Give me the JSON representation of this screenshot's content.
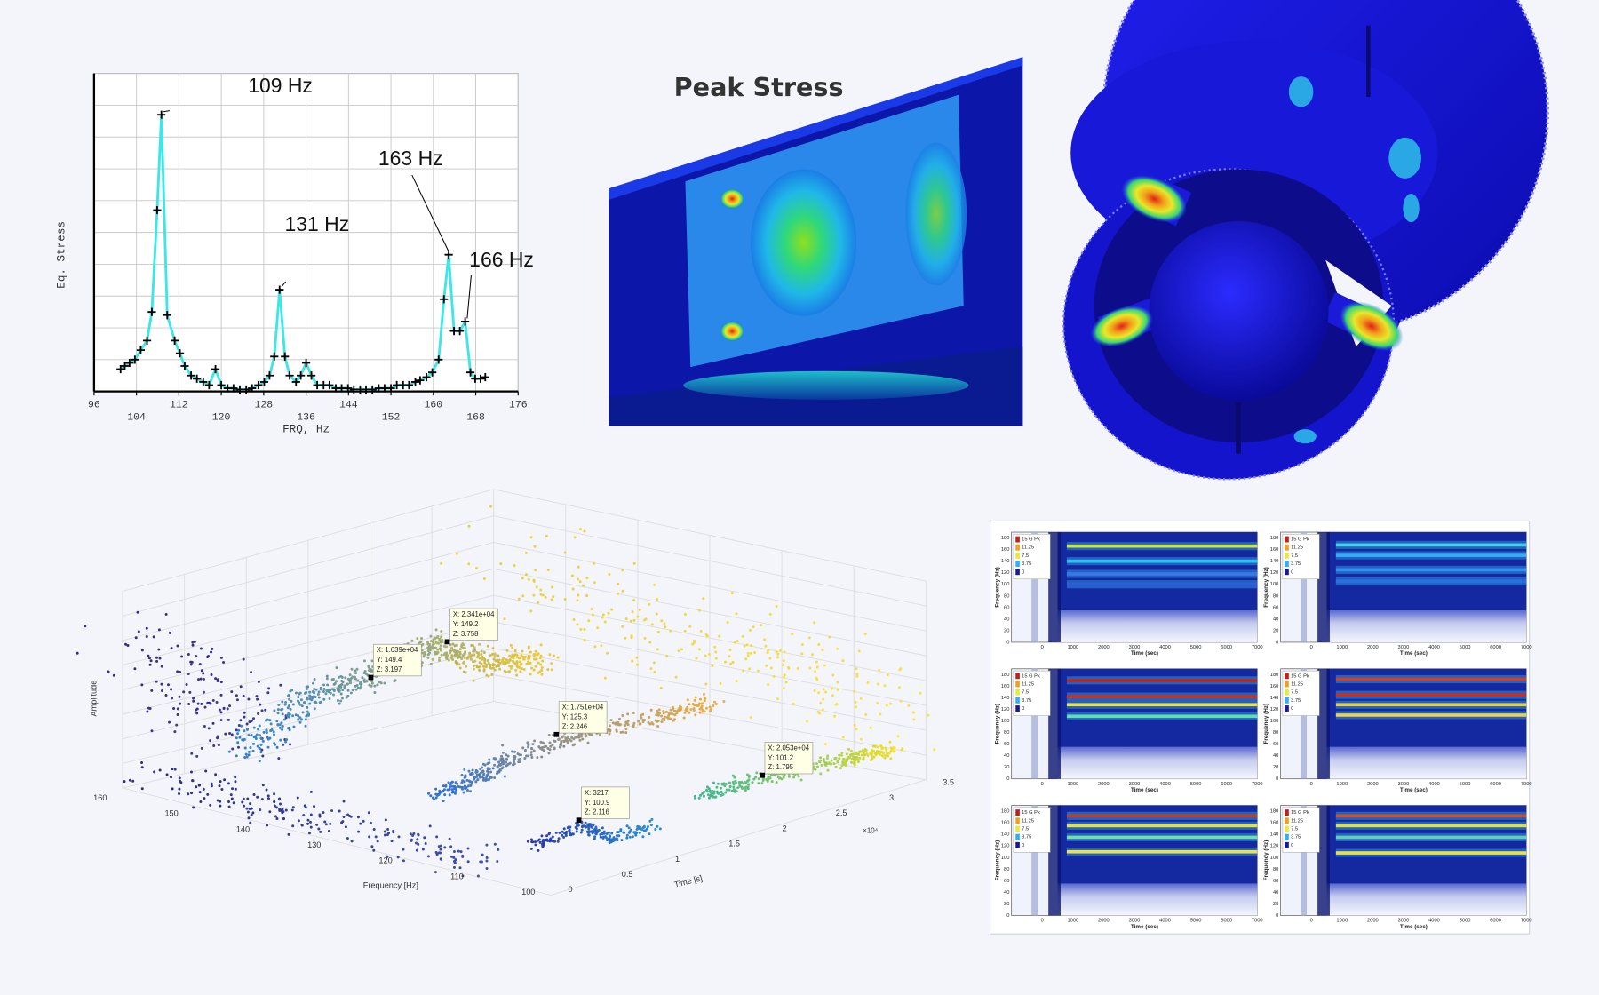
{
  "chart_data": {
    "type": "line",
    "x": [
      101.0,
      101.8,
      102.7,
      103.7,
      104.8,
      106.0,
      106.9,
      107.9,
      108.7,
      109.8,
      111.2,
      112.2,
      113.1,
      114.3,
      115.4,
      116.6,
      117.7,
      118.9,
      120.0,
      121.2,
      122.3,
      123.5,
      124.7,
      125.8,
      127.0,
      128.1,
      129.1,
      130.0,
      131.0,
      132.0,
      132.9,
      134.1,
      135.0,
      136.0,
      137.0,
      138.1,
      139.3,
      140.4,
      141.6,
      142.7,
      143.9,
      145.0,
      146.2,
      147.3,
      148.5,
      149.7,
      150.8,
      152.0,
      153.1,
      154.3,
      155.4,
      156.6,
      157.5,
      158.7,
      159.8,
      161.0,
      162.0,
      162.9,
      163.9,
      165.0,
      166.0,
      167.0,
      167.9,
      168.9,
      169.8
    ],
    "values": [
      0.7,
      0.8,
      0.9,
      1.0,
      1.3,
      1.6,
      2.5,
      5.7,
      8.7,
      2.4,
      1.6,
      1.2,
      0.8,
      0.5,
      0.4,
      0.3,
      0.2,
      0.7,
      0.2,
      0.1,
      0.1,
      0.06,
      0.06,
      0.1,
      0.2,
      0.3,
      0.5,
      1.1,
      3.2,
      1.1,
      0.5,
      0.3,
      0.5,
      0.9,
      0.5,
      0.2,
      0.2,
      0.2,
      0.1,
      0.1,
      0.1,
      0.06,
      0.06,
      0.06,
      0.06,
      0.1,
      0.1,
      0.1,
      0.2,
      0.2,
      0.2,
      0.3,
      0.35,
      0.45,
      0.6,
      1.0,
      2.9,
      4.3,
      1.9,
      1.9,
      2.2,
      0.6,
      0.4,
      0.4,
      0.45
    ],
    "color": "#3ee6e6",
    "marker_color": "#000000",
    "xlim": [
      96,
      176
    ],
    "xticks": [
      96,
      104,
      112,
      120,
      128,
      136,
      144,
      152,
      160,
      168,
      176
    ],
    "ylim": [
      0,
      10
    ],
    "grid": true,
    "x_label": "FRQ, Hz",
    "y_label": "Eq. Stress",
    "annotations": [
      {
        "text": "109 Hz",
        "x": 108.7,
        "y": 8.7
      },
      {
        "text": "131 Hz",
        "x": 131.0,
        "y": 3.2
      },
      {
        "text": "163 Hz",
        "x": 162.9,
        "y": 4.3
      },
      {
        "text": "166 Hz",
        "x": 166.0,
        "y": 2.2
      }
    ]
  },
  "stress_panel": {
    "title": "Peak Stress"
  },
  "scatter3d": {
    "x_label": "Time [s]",
    "y_label": "Frequency [Hz]",
    "z_label": "Amplitude",
    "time_ticks": [
      0,
      0.5,
      1,
      1.5,
      2,
      2.5,
      3,
      3.5
    ],
    "time_exponent": "×10⁴",
    "frequency_ticks": [
      160,
      150,
      140,
      130,
      120,
      110,
      100
    ],
    "datatips": [
      [
        "X: 2.341e+04",
        "Y: 149.2",
        "Z: 3.758"
      ],
      [
        "X: 1.639e+04",
        "Y: 149.4",
        "Z: 3.197"
      ],
      [
        "X: 1.751e+04",
        "Y: 125.3",
        "Z: 2.246"
      ],
      [
        "X: 2.053e+04",
        "Y: 101.2",
        "Z: 1.795"
      ],
      [
        "X: 3217",
        "Y: 100.9",
        "Z: 2.116"
      ]
    ]
  },
  "spectrograms": {
    "y_label": "Frequency (Hz)",
    "x_label": "Time (sec)",
    "y_ticks": [
      180,
      160,
      140,
      120,
      100,
      80,
      60,
      40,
      20,
      0
    ],
    "x_ticks": [
      0,
      1000,
      2000,
      3000,
      4000,
      5000,
      6000,
      7000
    ],
    "legend": [
      "15 G Pk",
      "11.25",
      "7.5",
      "3.75",
      "0"
    ]
  }
}
